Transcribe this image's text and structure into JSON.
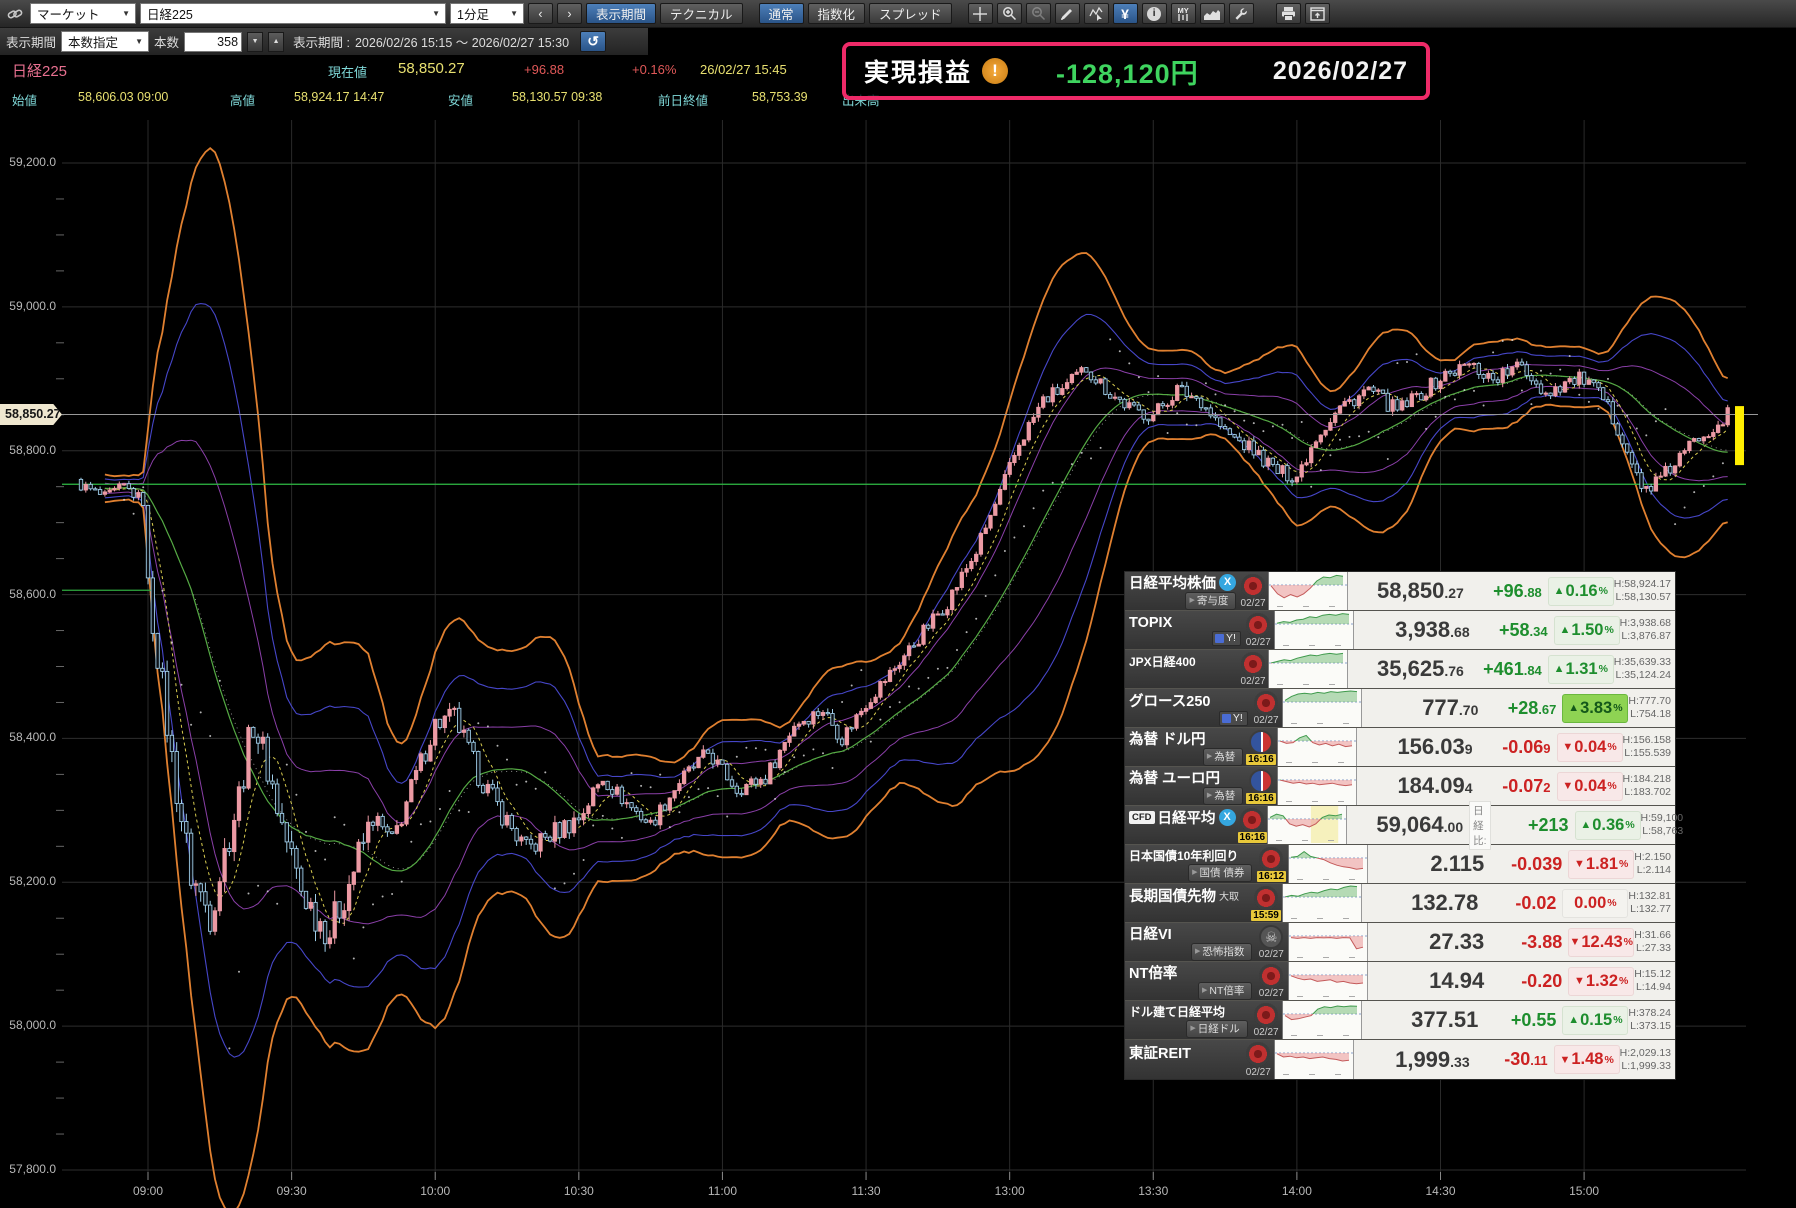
{
  "glyphs": {
    "up_triangle": "▲",
    "down_triangle": "▼",
    "percent": "%",
    "x": "X",
    "skull": "☠",
    "sub_arrow": "▶",
    "yahoo": "Y!",
    "yen": "¥",
    "info": "i",
    "my": "MY",
    "alert": "!",
    "prev": "‹",
    "next": "›",
    "spin_down": "▼",
    "spin_up": "▲",
    "select_arrow": "▼",
    "return_arrow": "↺"
  },
  "colors": {
    "accent_blue": "#2f5f9f",
    "pnl_border": "#ee2a68",
    "pnl_value": "#3fd45f",
    "up_candle": "#ec9aa4",
    "down_candle": "#9fcde8",
    "band_outer": "#e08030",
    "band_mid": "#4646c8",
    "band_inner": "#8a3fa8",
    "ma_fast": "#d8cc50",
    "ma_slow": "#55aa44",
    "prev_close_line": "#2fbb44",
    "current_price_line": "#999999",
    "highlight_bar": "#ffee00"
  },
  "toolbar": {
    "market_select": "マーケット",
    "symbol_select": "日経225",
    "interval_select": "1分足",
    "display_period": "表示期間",
    "technical": "テクニカル",
    "normal": "通常",
    "indexed": "指数化",
    "spread": "スプレッド"
  },
  "period_bar": {
    "label": "表示期間",
    "mode_select": "本数指定",
    "count_label": "本数",
    "count_value": "358",
    "range_label": "表示期間 :",
    "range_value": "2026/02/26 15:15 ～ 2026/02/27 15:30"
  },
  "quote_header": {
    "symbol": "日経225",
    "current_label": "現在値",
    "current_value": "58,850.27",
    "change": "+96.88",
    "change_pct": "+0.16%",
    "datetime": "26/02/27 15:45",
    "open_label": "始値",
    "open_value": "58,606.03",
    "open_time": "09:00",
    "high_label": "高値",
    "high_value": "58,924.17",
    "high_time": "14:47",
    "low_label": "安値",
    "low_value": "58,130.57",
    "low_time": "09:38",
    "prev_close_label": "前日終値",
    "prev_close_value": "58,753.39",
    "volume_label": "出来高"
  },
  "pnl_box": {
    "label": "実現損益",
    "value": "-128,120円",
    "date": "2026/02/27"
  },
  "chart": {
    "price_tag": "58,850.27",
    "lines": {
      "current": 58850.27,
      "prev_close": 58753.39,
      "open": 58606.03
    },
    "y_ticks": [
      {
        "label": "59,200.0",
        "value": 59200
      },
      {
        "label": "59,000.0",
        "value": 59000
      },
      {
        "label": "58,800.0",
        "value": 58800
      },
      {
        "label": "58,600.0",
        "value": 58600
      },
      {
        "label": "58,400.0",
        "value": 58400
      },
      {
        "label": "58,200.0",
        "value": 58200
      },
      {
        "label": "58,000.0",
        "value": 58000
      },
      {
        "label": "57,800.0",
        "value": 57800
      }
    ],
    "x_ticks": [
      {
        "label": "09:00",
        "t": 15
      },
      {
        "label": "09:30",
        "t": 45
      },
      {
        "label": "10:00",
        "t": 75
      },
      {
        "label": "10:30",
        "t": 105
      },
      {
        "label": "11:00",
        "t": 135
      },
      {
        "label": "11:30",
        "t": 165
      },
      {
        "label": "13:00",
        "t": 195
      },
      {
        "label": "13:30",
        "t": 225
      },
      {
        "label": "14:00",
        "t": 255
      },
      {
        "label": "14:30",
        "t": 285
      },
      {
        "label": "15:00",
        "t": 315
      }
    ],
    "anchors": [
      [
        0,
        58755
      ],
      [
        6,
        58735
      ],
      [
        10,
        58750
      ],
      [
        14,
        58730
      ],
      [
        15,
        58606
      ],
      [
        17,
        58520
      ],
      [
        20,
        58370
      ],
      [
        24,
        58210
      ],
      [
        28,
        58155
      ],
      [
        31,
        58240
      ],
      [
        34,
        58320
      ],
      [
        37,
        58425
      ],
      [
        40,
        58360
      ],
      [
        43,
        58280
      ],
      [
        47,
        58190
      ],
      [
        50,
        58155
      ],
      [
        53,
        58132
      ],
      [
        57,
        58200
      ],
      [
        62,
        58290
      ],
      [
        66,
        58255
      ],
      [
        70,
        58330
      ],
      [
        75,
        58420
      ],
      [
        79,
        58430
      ],
      [
        84,
        58350
      ],
      [
        89,
        58295
      ],
      [
        94,
        58245
      ],
      [
        100,
        58270
      ],
      [
        105,
        58290
      ],
      [
        110,
        58345
      ],
      [
        115,
        58310
      ],
      [
        120,
        58280
      ],
      [
        126,
        58340
      ],
      [
        132,
        58380
      ],
      [
        138,
        58330
      ],
      [
        144,
        58345
      ],
      [
        150,
        58420
      ],
      [
        156,
        58440
      ],
      [
        160,
        58400
      ],
      [
        165,
        58450
      ],
      [
        170,
        58490
      ],
      [
        176,
        58540
      ],
      [
        182,
        58590
      ],
      [
        188,
        58660
      ],
      [
        193,
        58740
      ],
      [
        197,
        58810
      ],
      [
        202,
        58870
      ],
      [
        207,
        58890
      ],
      [
        211,
        58915
      ],
      [
        216,
        58880
      ],
      [
        221,
        58855
      ],
      [
        225,
        58850
      ],
      [
        230,
        58885
      ],
      [
        235,
        58870
      ],
      [
        240,
        58825
      ],
      [
        246,
        58800
      ],
      [
        251,
        58770
      ],
      [
        255,
        58765
      ],
      [
        259,
        58820
      ],
      [
        264,
        58860
      ],
      [
        270,
        58885
      ],
      [
        276,
        58855
      ],
      [
        281,
        58880
      ],
      [
        286,
        58905
      ],
      [
        291,
        58920
      ],
      [
        296,
        58900
      ],
      [
        302,
        58918
      ],
      [
        307,
        58880
      ],
      [
        311,
        58895
      ],
      [
        315,
        58900
      ],
      [
        319,
        58870
      ],
      [
        323,
        58820
      ],
      [
        327,
        58745
      ],
      [
        331,
        58760
      ],
      [
        335,
        58790
      ],
      [
        339,
        58820
      ],
      [
        343,
        58840
      ],
      [
        345,
        58850
      ]
    ]
  },
  "watchlist": {
    "rows": [
      {
        "name": "日経平均株価",
        "x_icon": true,
        "sub": "寄与度",
        "flag": "jp",
        "time": "02/27",
        "value_main": "58,850",
        "value_small": ".27",
        "change_main": "+96",
        "change_small": ".88",
        "change_dir": "up",
        "pct": "0.16",
        "pct_dir": "up",
        "high": "H:58,924.17",
        "low": "L:58,130.57",
        "spark": {
          "pts": [
            -0.05,
            -0.55,
            -0.8,
            -0.6,
            -0.75,
            -0.55,
            -0.2,
            0.25,
            0.5,
            0.45,
            0.6,
            0.55
          ]
        }
      },
      {
        "name": "TOPIX",
        "yahoo": true,
        "flag": "jp",
        "time": "02/27",
        "value_main": "3,938",
        "value_small": ".68",
        "change_main": "+58",
        "change_small": ".34",
        "change_dir": "up",
        "pct": "1.50",
        "pct_dir": "up",
        "high": "H:3,938.68",
        "low": "L:3,876.87",
        "spark": {
          "pts": [
            0.05,
            0.15,
            0.1,
            0.25,
            0.3,
            0.45,
            0.4,
            0.55,
            0.6,
            0.55,
            0.65,
            0.6
          ]
        }
      },
      {
        "name": "JPX日経400",
        "flag": "jp",
        "time": "02/27",
        "value_main": "35,625",
        "value_small": ".76",
        "change_main": "+461",
        "change_small": ".84",
        "change_dir": "up",
        "pct": "1.31",
        "pct_dir": "up",
        "high": "H:35,639.33",
        "low": "L:35,124.24",
        "spark": {
          "pts": [
            0,
            0.1,
            0.2,
            0.15,
            0.3,
            0.4,
            0.5,
            0.45,
            0.55,
            0.6,
            0.55,
            0.6
          ]
        }
      },
      {
        "name": "グロース250",
        "yahoo": true,
        "flag": "jp",
        "time": "02/27",
        "value_main": "777",
        "value_small": ".70",
        "change_main": "+28",
        "change_small": ".67",
        "change_dir": "up",
        "pct": "3.83",
        "pct_dir": "strong",
        "high": "H:777.70",
        "low": "L:754.18",
        "spark": {
          "pts": [
            0.1,
            0.35,
            0.5,
            0.55,
            0.5,
            0.6,
            0.55,
            0.65,
            0.6,
            0.65,
            0.7,
            0.65
          ]
        }
      },
      {
        "name": "為替 ドル円",
        "sub": "為替",
        "flag": "fx",
        "time": "16:16",
        "time_hot": true,
        "value_main": "156.03",
        "value_small": "9",
        "change_main": "-0.06",
        "change_small": "9",
        "change_dir": "down",
        "pct": "0.04",
        "pct_dir": "down",
        "high": "H:156.158",
        "low": "L:155.539",
        "spark": {
          "pts": [
            0,
            -0.15,
            -0.1,
            0.2,
            0.35,
            -0.1,
            -0.25,
            -0.15,
            -0.3,
            -0.2,
            -0.35,
            -0.3
          ]
        }
      },
      {
        "name": "為替 ユーロ円",
        "sub": "為替",
        "flag": "fx",
        "time": "16:16",
        "time_hot": true,
        "value_main": "184.09",
        "value_small": "4",
        "change_main": "-0.07",
        "change_small": "2",
        "change_dir": "down",
        "pct": "0.04",
        "pct_dir": "down",
        "high": "H:184.218",
        "low": "L:183.702",
        "spark": {
          "pts": [
            0,
            -0.1,
            -0.2,
            -0.15,
            -0.25,
            -0.2,
            -0.3,
            -0.25,
            -0.2,
            -0.3,
            -0.35,
            -0.3
          ]
        }
      },
      {
        "name": "日経平均",
        "cfd_label": "CFD",
        "x_icon": true,
        "flag": "jp",
        "time": "16:16",
        "time_hot": true,
        "value_main": "59,064",
        "value_small": ".00",
        "hi_label": "日経比:",
        "change_main": "+213",
        "change_small": "",
        "change_dir": "up",
        "pct": "0.36",
        "pct_dir": "up",
        "high": "H:59,100",
        "low": "L:58,763",
        "spark": {
          "pts": [
            0.1,
            0.3,
            0.2,
            -0.3,
            -0.45,
            -0.35,
            -0.5,
            -0.3,
            0.1,
            0.25,
            0.2,
            0.3
          ],
          "band": [
            0.55,
            0.9
          ]
        }
      },
      {
        "name": "日本国債10年利回り",
        "sub": "国債 債券",
        "flag": "jp",
        "time": "16:12",
        "time_hot": true,
        "value_main": "2.115",
        "value_small": "",
        "change_main": "-0.039",
        "change_small": "",
        "change_dir": "down",
        "pct": "1.81",
        "pct_dir": "down",
        "high": "H:2.150",
        "low": "L:2.114",
        "spark": {
          "pts": [
            0.05,
            0.1,
            0.4,
            0.1,
            0,
            -0.1,
            -0.3,
            -0.45,
            -0.55,
            -0.6,
            -0.7,
            -0.65
          ]
        }
      },
      {
        "name": "長期国債先物",
        "name_suffix": "大取",
        "flag": "jp",
        "time": "15:59",
        "time_hot": true,
        "value_main": "132.78",
        "value_small": "",
        "change_main": "-0.02",
        "change_small": "",
        "change_dir": "down",
        "pct": "0.00",
        "pct_dir": "flat",
        "high": "H:132.81",
        "low": "L:132.77",
        "spark": {
          "pts": [
            0,
            0.1,
            0.05,
            0.2,
            0.3,
            0.25,
            0.4,
            0.5,
            0.45,
            0.6,
            0.7,
            0.65
          ]
        }
      },
      {
        "name": "日経VI",
        "sub": "恐怖指数",
        "flag": "skull",
        "time": "02/27",
        "value_main": "27.33",
        "value_small": "",
        "change_main": "-3.88",
        "change_small": "",
        "change_dir": "down",
        "pct": "12.43",
        "pct_dir": "down",
        "high": "H:31.66",
        "low": "L:27.33",
        "spark": {
          "pts": [
            -0.1,
            -0.15,
            -0.1,
            -0.15,
            -0.1,
            -0.12,
            -0.1,
            -0.15,
            -0.1,
            -0.12,
            -0.8,
            -0.7
          ]
        }
      },
      {
        "name": "NT倍率",
        "sub": "NT倍率",
        "flag": "jp",
        "time": "02/27",
        "value_main": "14.94",
        "value_small": "",
        "change_main": "-0.20",
        "change_small": "",
        "change_dir": "down",
        "pct": "1.32",
        "pct_dir": "down",
        "high": "H:15.12",
        "low": "L:14.94",
        "spark": {
          "pts": [
            -0.05,
            -0.2,
            -0.3,
            -0.25,
            -0.4,
            -0.35,
            -0.3,
            -0.45,
            -0.4,
            -0.5,
            -0.55,
            -0.5
          ]
        }
      },
      {
        "name": "ドル建て日経平均",
        "sub": "日経ドル",
        "flag": "jp",
        "time": "02/27",
        "value_main": "377.51",
        "value_small": "",
        "change_main": "+0.55",
        "change_small": "",
        "change_dir": "up",
        "pct": "0.15",
        "pct_dir": "up",
        "high": "H:378.24",
        "low": "L:373.15",
        "spark": {
          "pts": [
            -0.1,
            -0.35,
            -0.3,
            -0.2,
            -0.1,
            0.3,
            0.45,
            0.4,
            0.5,
            0.45,
            0.5,
            0.48
          ]
        }
      },
      {
        "name": "東証REIT",
        "flag": "jp",
        "time": "02/27",
        "value_main": "1,999",
        "value_small": ".33",
        "change_main": "-30",
        "change_small": ".11",
        "change_dir": "down",
        "pct": "1.48",
        "pct_dir": "down",
        "high": "H:2,029.13",
        "low": "L:1,999.33",
        "spark": {
          "pts": [
            -0.05,
            -0.25,
            -0.2,
            -0.3,
            -0.25,
            -0.35,
            -0.3,
            -0.25,
            -0.35,
            -0.4,
            -0.5,
            -0.45
          ]
        }
      }
    ]
  }
}
